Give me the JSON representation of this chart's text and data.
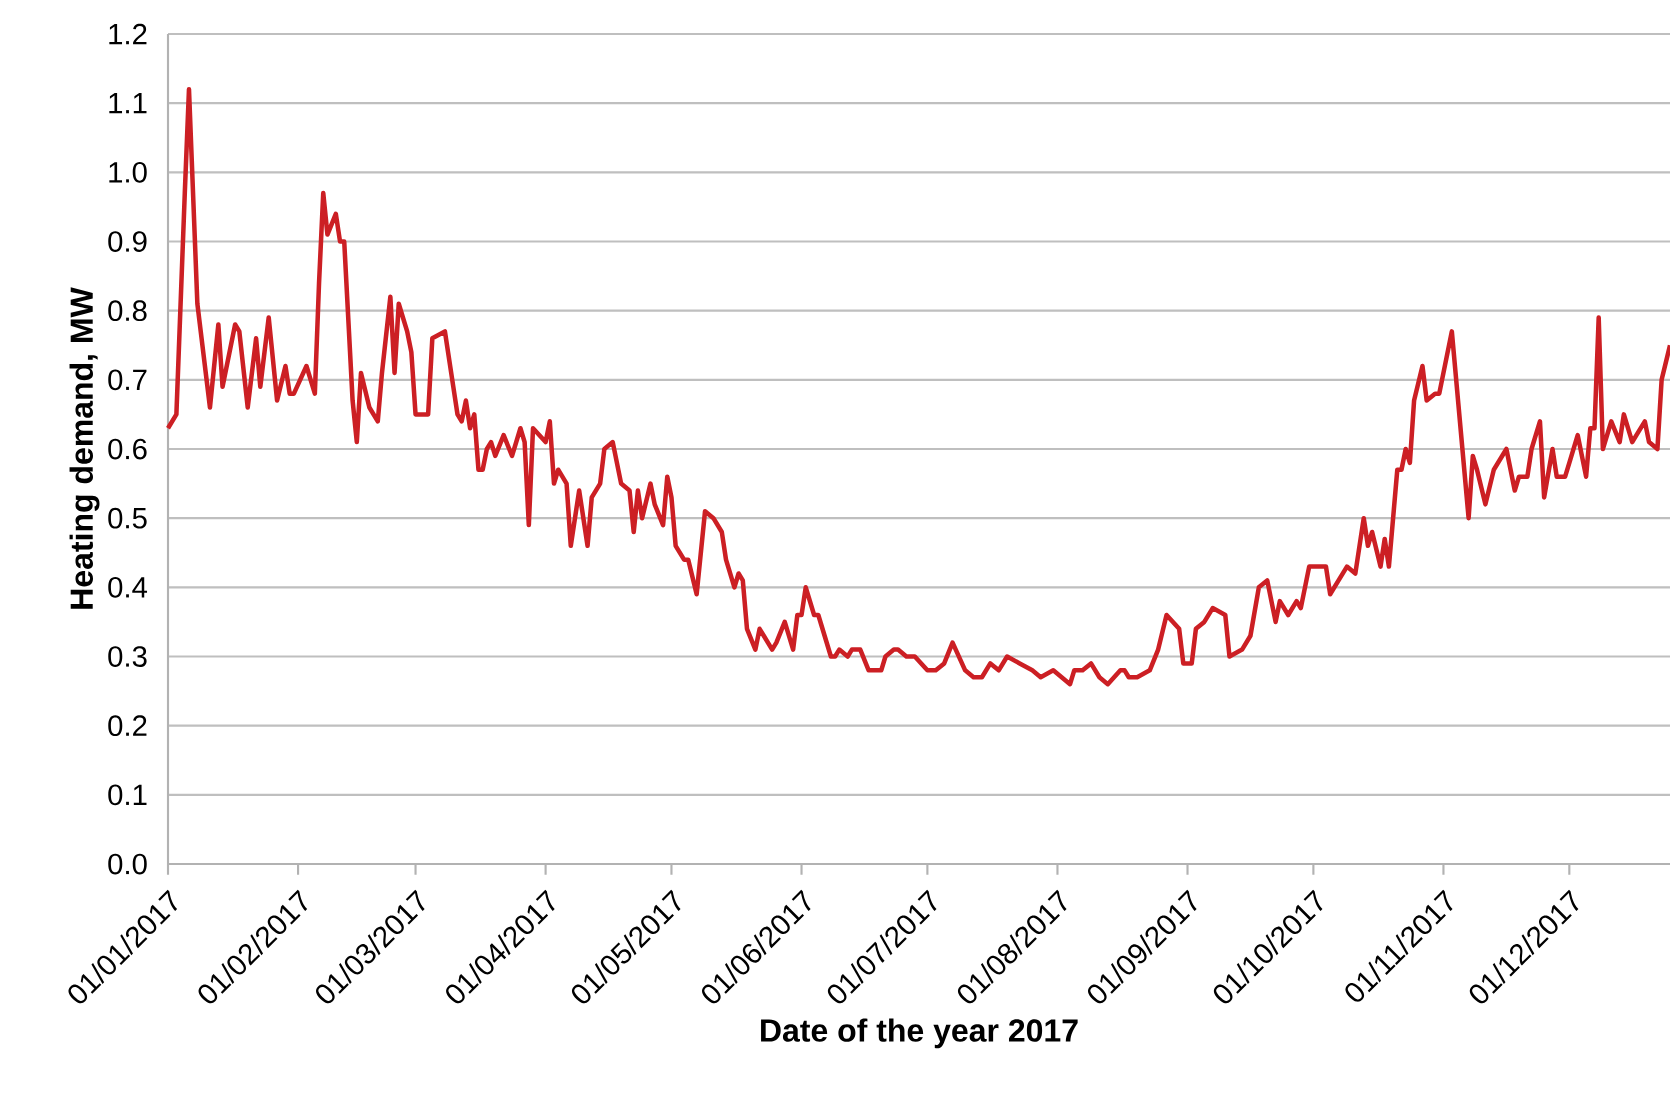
{
  "chart_data": {
    "type": "line",
    "xlabel": "Date of the year 2017",
    "ylabel": "Heating demand, MW",
    "xlim": [
      "2017-01-01",
      "2017-12-25"
    ],
    "xticks": [
      {
        "value": "2017-01-01",
        "label": "01/01/2017"
      },
      {
        "value": "2017-02-01",
        "label": "01/02/2017"
      },
      {
        "value": "2017-03-01",
        "label": "01/03/2017"
      },
      {
        "value": "2017-04-01",
        "label": "01/04/2017"
      },
      {
        "value": "2017-05-01",
        "label": "01/05/2017"
      },
      {
        "value": "2017-06-01",
        "label": "01/06/2017"
      },
      {
        "value": "2017-07-01",
        "label": "01/07/2017"
      },
      {
        "value": "2017-08-01",
        "label": "01/08/2017"
      },
      {
        "value": "2017-09-01",
        "label": "01/09/2017"
      },
      {
        "value": "2017-10-01",
        "label": "01/10/2017"
      },
      {
        "value": "2017-11-01",
        "label": "01/11/2017"
      },
      {
        "value": "2017-12-01",
        "label": "01/12/2017"
      }
    ],
    "ylim": [
      0,
      1.2
    ],
    "yticks": [
      {
        "value": 0,
        "label": "0.0"
      },
      {
        "value": 0.1,
        "label": "0.1"
      },
      {
        "value": 0.2,
        "label": "0.2"
      },
      {
        "value": 0.3,
        "label": "0.3"
      },
      {
        "value": 0.4,
        "label": "0.4"
      },
      {
        "value": 0.5,
        "label": "0.5"
      },
      {
        "value": 0.6,
        "label": "0.6"
      },
      {
        "value": 0.7,
        "label": "0.7"
      },
      {
        "value": 0.8,
        "label": "0.8"
      },
      {
        "value": 0.9,
        "label": "0.9"
      },
      {
        "value": 1,
        "label": "1.0"
      },
      {
        "value": 1.1,
        "label": "1.1"
      },
      {
        "value": 1.2,
        "label": "1.2"
      }
    ],
    "grid": "y",
    "marker": "none",
    "line_style": "solid",
    "x": [
      "2017-01-01",
      "2017-01-03",
      "2017-01-05",
      "2017-01-06",
      "2017-01-08",
      "2017-01-11",
      "2017-01-13",
      "2017-01-14",
      "2017-01-17",
      "2017-01-18",
      "2017-01-20",
      "2017-01-22",
      "2017-01-23",
      "2017-01-25",
      "2017-01-27",
      "2017-01-29",
      "2017-01-30",
      "2017-01-31",
      "2017-02-03",
      "2017-02-05",
      "2017-02-06",
      "2017-02-07",
      "2017-02-08",
      "2017-02-10",
      "2017-02-11",
      "2017-02-12",
      "2017-02-14",
      "2017-02-15",
      "2017-02-16",
      "2017-02-18",
      "2017-02-20",
      "2017-02-21",
      "2017-02-23",
      "2017-02-24",
      "2017-02-25",
      "2017-02-27",
      "2017-02-28",
      "2017-03-01",
      "2017-03-03",
      "2017-03-04",
      "2017-03-05",
      "2017-03-08",
      "2017-03-10",
      "2017-03-11",
      "2017-03-12",
      "2017-03-13",
      "2017-03-14",
      "2017-03-15",
      "2017-03-16",
      "2017-03-17",
      "2017-03-18",
      "2017-03-19",
      "2017-03-20",
      "2017-03-22",
      "2017-03-24",
      "2017-03-26",
      "2017-03-27",
      "2017-03-28",
      "2017-03-29",
      "2017-04-01",
      "2017-04-02",
      "2017-04-03",
      "2017-04-04",
      "2017-04-05",
      "2017-04-06",
      "2017-04-07",
      "2017-04-09",
      "2017-04-11",
      "2017-04-12",
      "2017-04-14",
      "2017-04-15",
      "2017-04-17",
      "2017-04-19",
      "2017-04-21",
      "2017-04-22",
      "2017-04-23",
      "2017-04-24",
      "2017-04-26",
      "2017-04-27",
      "2017-04-29",
      "2017-04-30",
      "2017-05-01",
      "2017-05-02",
      "2017-05-04",
      "2017-05-05",
      "2017-05-07",
      "2017-05-09",
      "2017-05-11",
      "2017-05-13",
      "2017-05-14",
      "2017-05-16",
      "2017-05-17",
      "2017-05-18",
      "2017-05-19",
      "2017-05-21",
      "2017-05-22",
      "2017-05-23",
      "2017-05-25",
      "2017-05-26",
      "2017-05-28",
      "2017-05-30",
      "2017-05-31",
      "2017-06-01",
      "2017-06-02",
      "2017-06-04",
      "2017-06-05",
      "2017-06-08",
      "2017-06-09",
      "2017-06-10",
      "2017-06-12",
      "2017-06-13",
      "2017-06-15",
      "2017-06-17",
      "2017-06-20",
      "2017-06-21",
      "2017-06-23",
      "2017-06-24",
      "2017-06-26",
      "2017-06-28",
      "2017-07-01",
      "2017-07-03",
      "2017-07-05",
      "2017-07-07",
      "2017-07-10",
      "2017-07-12",
      "2017-07-14",
      "2017-07-16",
      "2017-07-18",
      "2017-07-20",
      "2017-07-23",
      "2017-07-26",
      "2017-07-28",
      "2017-07-31",
      "2017-08-02",
      "2017-08-04",
      "2017-08-05",
      "2017-08-07",
      "2017-08-09",
      "2017-08-11",
      "2017-08-13",
      "2017-08-16",
      "2017-08-17",
      "2017-08-18",
      "2017-08-20",
      "2017-08-23",
      "2017-08-25",
      "2017-08-27",
      "2017-08-30",
      "2017-08-31",
      "2017-09-02",
      "2017-09-03",
      "2017-09-05",
      "2017-09-07",
      "2017-09-10",
      "2017-09-11",
      "2017-09-14",
      "2017-09-16",
      "2017-09-18",
      "2017-09-20",
      "2017-09-22",
      "2017-09-23",
      "2017-09-25",
      "2017-09-27",
      "2017-09-28",
      "2017-09-30",
      "2017-10-02",
      "2017-10-04",
      "2017-10-05",
      "2017-10-07",
      "2017-10-09",
      "2017-10-11",
      "2017-10-13",
      "2017-10-14",
      "2017-10-15",
      "2017-10-17",
      "2017-10-18",
      "2017-10-19",
      "2017-10-21",
      "2017-10-22",
      "2017-10-23",
      "2017-10-24",
      "2017-10-25",
      "2017-10-27",
      "2017-10-28",
      "2017-10-30",
      "2017-10-31",
      "2017-11-03",
      "2017-11-07",
      "2017-11-08",
      "2017-11-09",
      "2017-11-11",
      "2017-11-13",
      "2017-11-16",
      "2017-11-18",
      "2017-11-19",
      "2017-11-21",
      "2017-11-22",
      "2017-11-24",
      "2017-11-25",
      "2017-11-27",
      "2017-11-28",
      "2017-11-30",
      "2017-12-01",
      "2017-12-03",
      "2017-12-05",
      "2017-12-06",
      "2017-12-07",
      "2017-12-08",
      "2017-12-09",
      "2017-12-11",
      "2017-12-13",
      "2017-12-14",
      "2017-12-16",
      "2017-12-17",
      "2017-12-19",
      "2017-12-20",
      "2017-12-22",
      "2017-12-23",
      "2017-12-25"
    ],
    "series": [
      {
        "color": "#cc1f24",
        "values": [
          0.63,
          0.65,
          0.97,
          1.12,
          0.81,
          0.66,
          0.78,
          0.69,
          0.78,
          0.77,
          0.66,
          0.76,
          0.69,
          0.79,
          0.67,
          0.72,
          0.68,
          0.68,
          0.72,
          0.68,
          0.84,
          0.97,
          0.91,
          0.94,
          0.9,
          0.9,
          0.67,
          0.61,
          0.71,
          0.66,
          0.64,
          0.71,
          0.82,
          0.71,
          0.81,
          0.77,
          0.74,
          0.65,
          0.65,
          0.65,
          0.76,
          0.77,
          0.69,
          0.65,
          0.64,
          0.67,
          0.63,
          0.65,
          0.57,
          0.57,
          0.6,
          0.61,
          0.59,
          0.62,
          0.59,
          0.63,
          0.61,
          0.49,
          0.63,
          0.61,
          0.64,
          0.55,
          0.57,
          0.56,
          0.55,
          0.46,
          0.54,
          0.46,
          0.53,
          0.55,
          0.6,
          0.61,
          0.55,
          0.54,
          0.48,
          0.54,
          0.5,
          0.55,
          0.52,
          0.49,
          0.56,
          0.53,
          0.46,
          0.44,
          0.44,
          0.39,
          0.51,
          0.5,
          0.48,
          0.44,
          0.4,
          0.42,
          0.41,
          0.34,
          0.31,
          0.34,
          0.33,
          0.31,
          0.32,
          0.35,
          0.31,
          0.36,
          0.36,
          0.4,
          0.36,
          0.36,
          0.3,
          0.3,
          0.31,
          0.3,
          0.31,
          0.31,
          0.28,
          0.28,
          0.3,
          0.31,
          0.31,
          0.3,
          0.3,
          0.28,
          0.28,
          0.29,
          0.32,
          0.28,
          0.27,
          0.27,
          0.29,
          0.28,
          0.3,
          0.29,
          0.28,
          0.27,
          0.28,
          0.27,
          0.26,
          0.28,
          0.28,
          0.29,
          0.27,
          0.26,
          0.28,
          0.28,
          0.27,
          0.27,
          0.28,
          0.31,
          0.36,
          0.34,
          0.29,
          0.29,
          0.34,
          0.35,
          0.37,
          0.36,
          0.3,
          0.31,
          0.33,
          0.4,
          0.41,
          0.35,
          0.38,
          0.36,
          0.38,
          0.37,
          0.43,
          0.43,
          0.43,
          0.39,
          0.41,
          0.43,
          0.42,
          0.5,
          0.46,
          0.48,
          0.43,
          0.47,
          0.43,
          0.57,
          0.57,
          0.6,
          0.58,
          0.67,
          0.72,
          0.67,
          0.68,
          0.68,
          0.77,
          0.5,
          0.59,
          0.57,
          0.52,
          0.57,
          0.6,
          0.54,
          0.56,
          0.56,
          0.6,
          0.64,
          0.53,
          0.6,
          0.56,
          0.56,
          0.58,
          0.62,
          0.56,
          0.63,
          0.63,
          0.79,
          0.6,
          0.64,
          0.61,
          0.65,
          0.61,
          0.62,
          0.64,
          0.61,
          0.6,
          0.7,
          0.75
        ]
      }
    ]
  }
}
